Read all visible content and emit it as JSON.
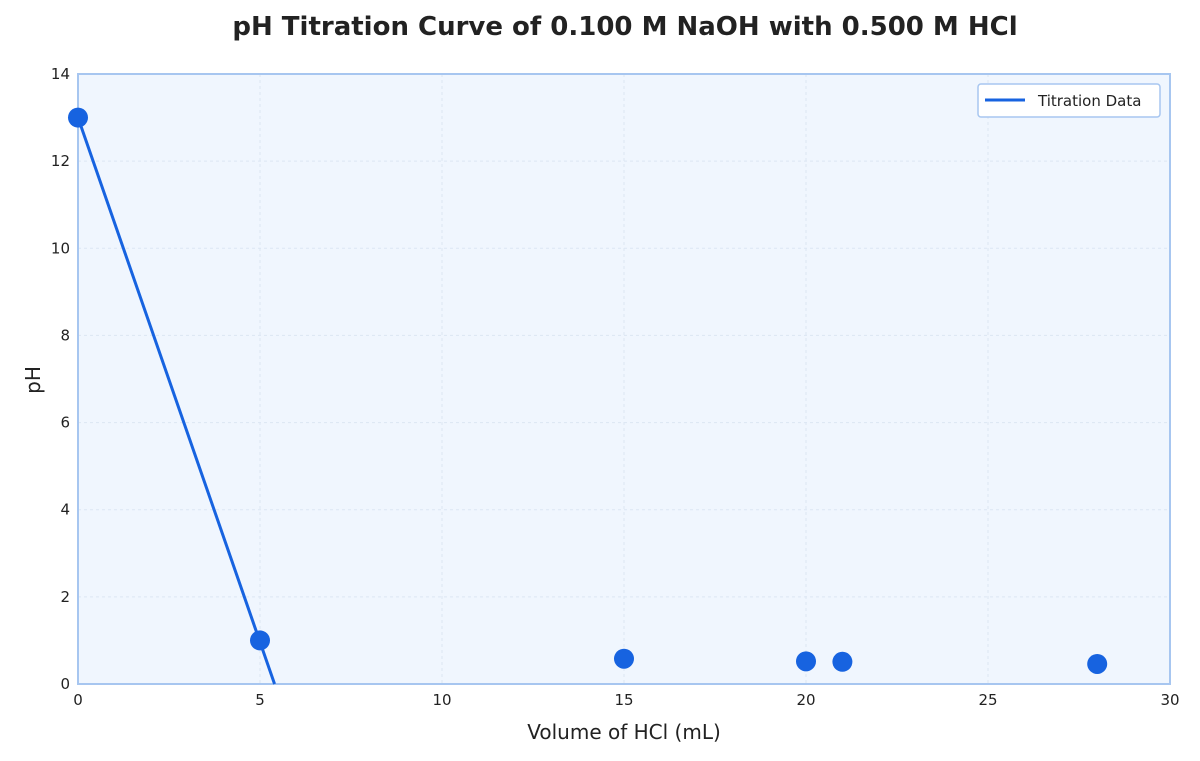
{
  "chart_data": {
    "type": "line",
    "title": "pH Titration Curve of 0.100 M NaOH with 0.500 M HCl",
    "xlabel": "Volume of HCl (mL)",
    "ylabel": "pH",
    "xlim": [
      0,
      30
    ],
    "ylim": [
      0,
      14
    ],
    "xticks": [
      "0",
      "5",
      "10",
      "15",
      "20",
      "25",
      "30"
    ],
    "yticks": [
      "0",
      "2",
      "4",
      "6",
      "8",
      "10",
      "12",
      "14"
    ],
    "grid": true,
    "legend_position": "top-right",
    "series": [
      {
        "name": "Titration Data",
        "x": [
          0,
          5,
          15,
          20,
          21,
          28
        ],
        "y": [
          13.0,
          1.0,
          0.58,
          0.52,
          0.51,
          0.46
        ]
      }
    ],
    "line_segment": {
      "x": [
        0,
        5.4
      ],
      "y": [
        13.0,
        0.0
      ]
    },
    "colors": {
      "series": "#1763e0",
      "plot_bg": "#f0f6fe",
      "frame": "#a7c6f0",
      "grid": "#dce6f3"
    }
  }
}
